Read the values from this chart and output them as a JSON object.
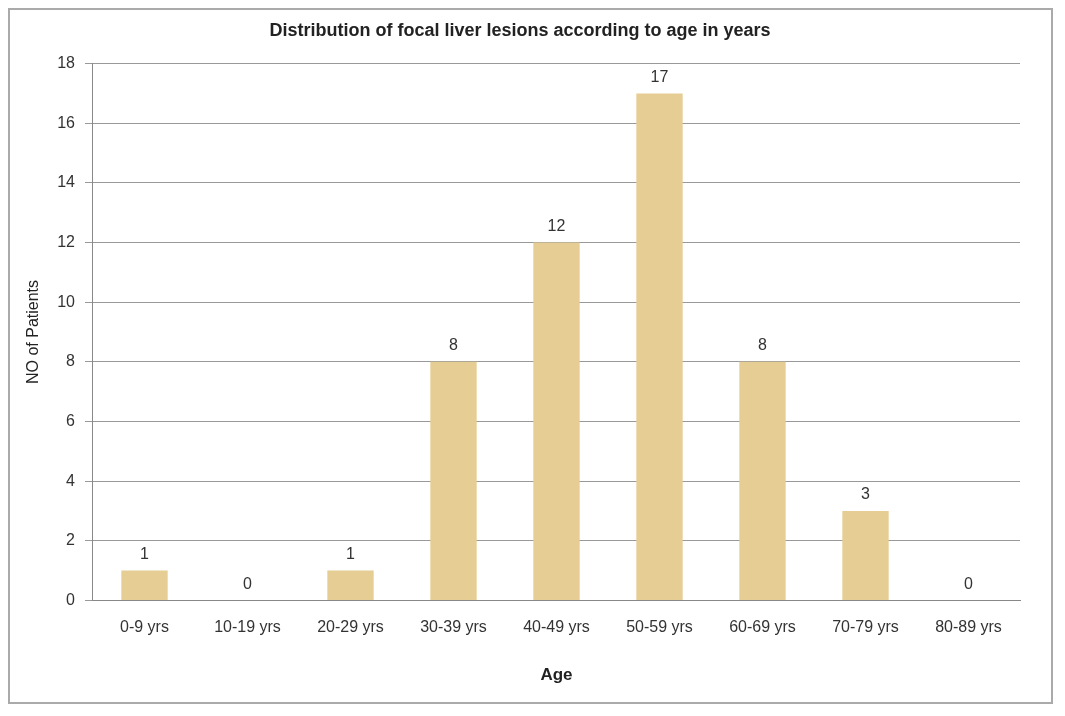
{
  "chart_data": {
    "type": "bar",
    "title": "Distribution of focal liver lesions according to age in years",
    "xlabel": "Age",
    "ylabel": "NO of Patients",
    "categories": [
      "0-9 yrs",
      "10-19 yrs",
      "20-29 yrs",
      "30-39 yrs",
      "40-49 yrs",
      "50-59 yrs",
      "60-69 yrs",
      "70-79 yrs",
      "80-89 yrs"
    ],
    "values": [
      1,
      0,
      1,
      8,
      12,
      17,
      8,
      3,
      0
    ],
    "color": "#e6cd93",
    "ylim": [
      0,
      18
    ],
    "yticks": [
      0,
      2,
      4,
      6,
      8,
      10,
      12,
      14,
      16,
      18
    ],
    "grid": "y",
    "data_labels": true,
    "legend": false
  }
}
